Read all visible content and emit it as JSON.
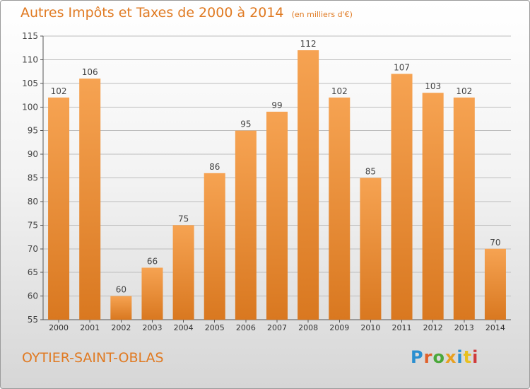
{
  "header": {
    "title": "Autres Impôts et Taxes de 2000 à 2014",
    "subtitle": "(en milliers d'€)"
  },
  "footer": {
    "commune": "OYTIER-SAINT-OBLAS",
    "logo_text": "Proxiti",
    "logo_colors": [
      "#2a8fd0",
      "#e0602a",
      "#4aa83a",
      "#e8a020",
      "#2a8fd0",
      "#e8c020",
      "#d03a3a"
    ]
  },
  "colors": {
    "bar_top": "#f6a352",
    "bar_bottom": "#d97820",
    "grid": "#bdbdbd",
    "accent": "#e07a22"
  },
  "chart_data": {
    "type": "bar",
    "categories": [
      "2000",
      "2001",
      "2002",
      "2003",
      "2004",
      "2005",
      "2006",
      "2007",
      "2008",
      "2009",
      "2010",
      "2011",
      "2012",
      "2013",
      "2014"
    ],
    "values": [
      102,
      106,
      60,
      66,
      75,
      86,
      95,
      99,
      112,
      102,
      85,
      107,
      103,
      102,
      70
    ],
    "title": "Autres Impôts et Taxes de 2000 à 2014",
    "subtitle": "(en milliers d'€)",
    "ylim": [
      55,
      115
    ],
    "yticks": [
      55,
      60,
      65,
      70,
      75,
      80,
      85,
      90,
      95,
      100,
      105,
      110,
      115
    ],
    "grid": true
  }
}
